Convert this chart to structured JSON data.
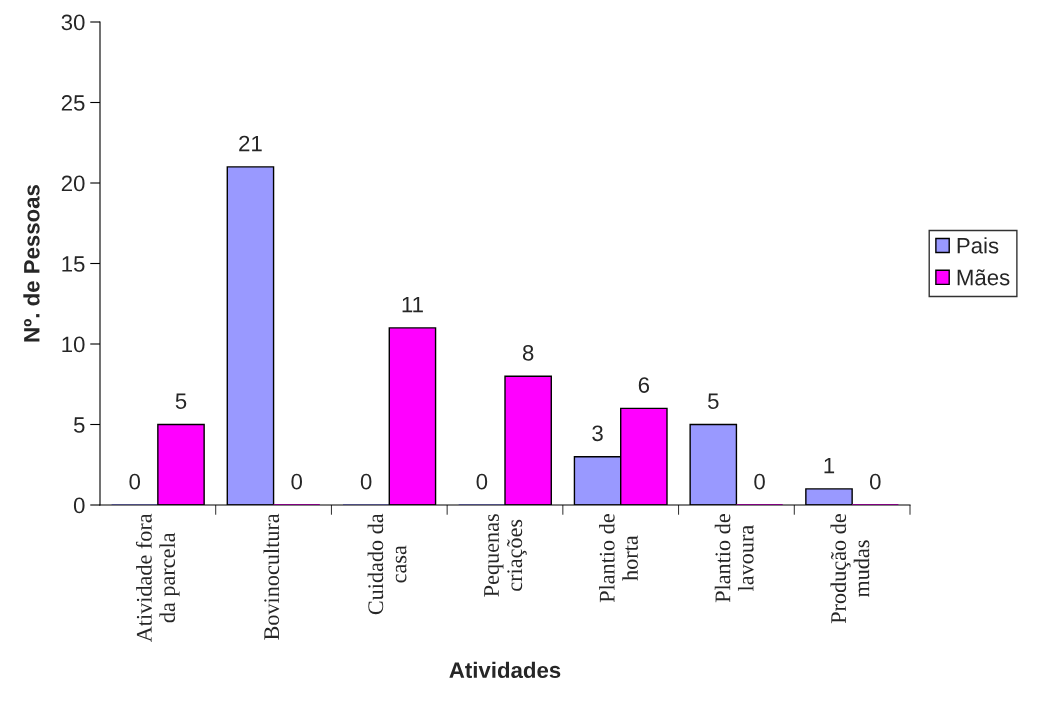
{
  "chart_data": {
    "type": "bar",
    "xlabel": "Atividades",
    "ylabel": "Nº. de Pessoas",
    "categories": [
      "Atividade fora\nda parcela",
      "Bovinocultura",
      "Cuidado da\ncasa",
      "Pequenas\ncriações",
      "Plantio de\nhorta",
      "Plantio de\nlavoura",
      "Produção de\nmudas"
    ],
    "series": [
      {
        "name": "Pais",
        "color": "#9999ff",
        "values": [
          0,
          21,
          0,
          0,
          3,
          5,
          1
        ]
      },
      {
        "name": "Mães",
        "color": "#ff00ff",
        "values": [
          5,
          0,
          11,
          8,
          6,
          0,
          0
        ]
      }
    ],
    "ylim": [
      0,
      30
    ],
    "yticks": [
      0,
      5,
      10,
      15,
      20,
      25,
      30
    ],
    "data_labels": true,
    "legend": "right",
    "grid": false
  }
}
